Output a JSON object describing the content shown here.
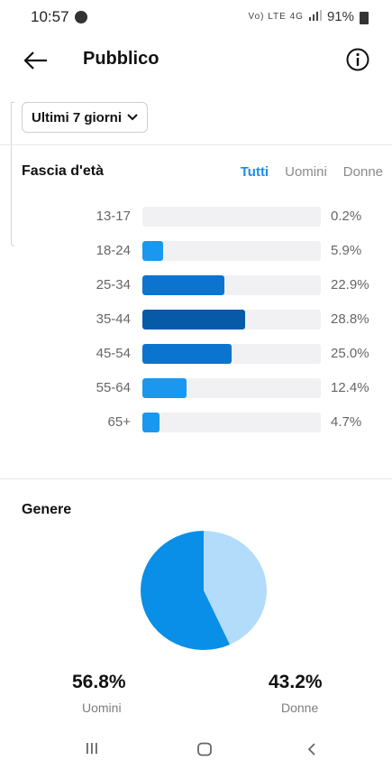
{
  "status": {
    "time": "10:57",
    "net_icons": "Vo) LTE 4G",
    "battery": "91%"
  },
  "header": {
    "title": "Pubblico",
    "back_icon": "arrow-left-icon",
    "info_icon": "info-icon"
  },
  "range": {
    "label": "Ultimi 7 giorni"
  },
  "age": {
    "title": "Fascia d'età",
    "filters": [
      "Tutti",
      "Uomini",
      "Donne"
    ],
    "active_filter": "Tutti",
    "rows": [
      {
        "label": "13-17",
        "value": 0.2,
        "pct": "0.2%"
      },
      {
        "label": "18-24",
        "value": 5.9,
        "pct": "5.9%"
      },
      {
        "label": "25-34",
        "value": 22.9,
        "pct": "22.9%"
      },
      {
        "label": "35-44",
        "value": 28.8,
        "pct": "28.8%"
      },
      {
        "label": "45-54",
        "value": 25.0,
        "pct": "25.0%"
      },
      {
        "label": "55-64",
        "value": 12.4,
        "pct": "12.4%"
      },
      {
        "label": "65+",
        "value": 4.7,
        "pct": "4.7%"
      }
    ]
  },
  "gender": {
    "title": "Genere",
    "men": {
      "pct": "56.8%",
      "label": "Uomini",
      "value": 56.8,
      "color": "#0a8fe8"
    },
    "women": {
      "pct": "43.2%",
      "label": "Donne",
      "value": 43.2,
      "color": "#b3dcfb"
    }
  },
  "chart_data": {
    "type": "bar",
    "categories": [
      "13-17",
      "18-24",
      "25-34",
      "35-44",
      "45-54",
      "55-64",
      "65+"
    ],
    "values": [
      0.2,
      5.9,
      22.9,
      28.8,
      25.0,
      12.4,
      4.7
    ],
    "title": "Fascia d'età"
  },
  "colors": {
    "accent": "#1b8cf0",
    "bar_max": "#075aa8",
    "bar_mid": "#0b74cf",
    "bar_low": "#1a97ee"
  }
}
